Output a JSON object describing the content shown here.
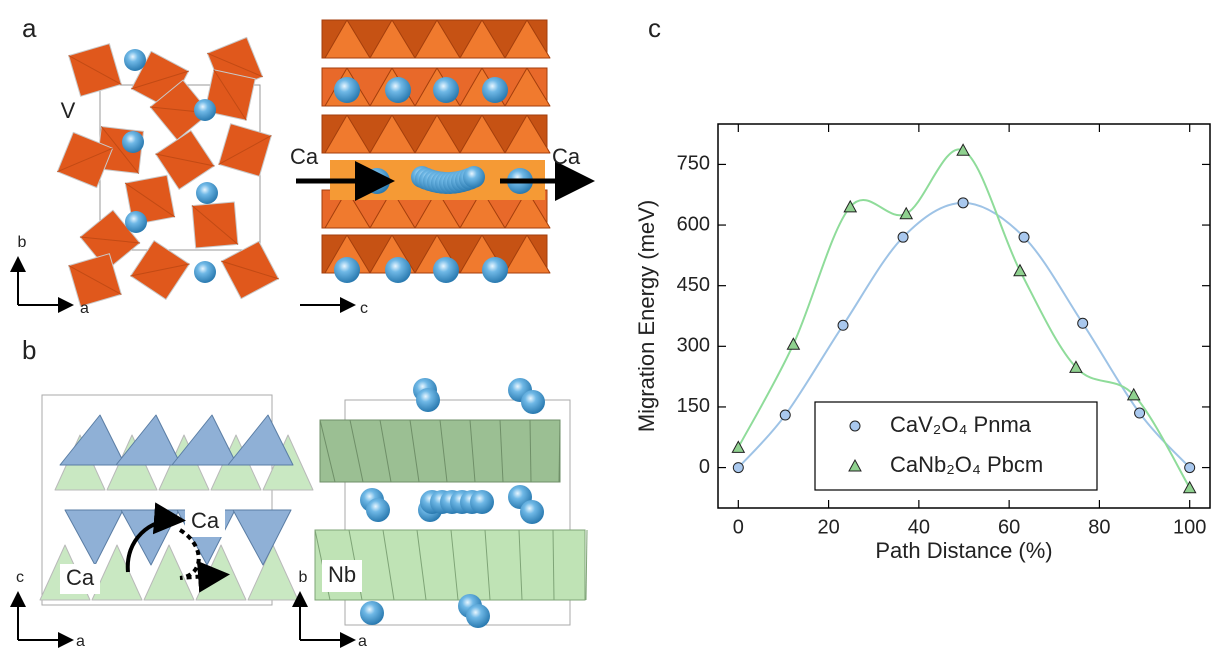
{
  "panels": {
    "letters": [
      "a",
      "b",
      "c"
    ],
    "labels_a": [
      "V",
      "Ca",
      "Ca",
      "b",
      "a",
      "c"
    ],
    "labels_b": [
      "Ca",
      "Ca",
      "Nb",
      "c",
      "a",
      "b",
      "a"
    ]
  },
  "chart_data": {
    "type": "line",
    "xlabel": "Path Distance (%)",
    "ylabel": "Migration Energy (meV)",
    "xlim": [
      -4.5,
      104.5
    ],
    "ylim": [
      -100,
      850
    ],
    "xticks": [
      0,
      20,
      40,
      60,
      80,
      100
    ],
    "yticks": [
      0,
      150,
      300,
      450,
      600,
      750
    ],
    "series": [
      {
        "name": "CaV₂O₄ Pnma",
        "color": "#9ec3e6",
        "marker": "circle",
        "marker_color": "#a9c8ee",
        "x": [
          0,
          10.4,
          23.2,
          36.5,
          49.8,
          63.3,
          76.3,
          88.9,
          100
        ],
        "values": [
          0,
          130,
          352,
          570,
          655,
          570,
          357,
          135,
          0
        ]
      },
      {
        "name": "CaNb₂O₄ Pbcm",
        "color": "#8fdc9a",
        "marker": "triangle",
        "marker_color": "#8fd18f",
        "x": [
          0,
          12.2,
          24.8,
          37.2,
          49.8,
          62.4,
          74.8,
          87.6,
          100
        ],
        "values": [
          50,
          305,
          645,
          628,
          785,
          487,
          248,
          180,
          -50
        ]
      }
    ]
  }
}
